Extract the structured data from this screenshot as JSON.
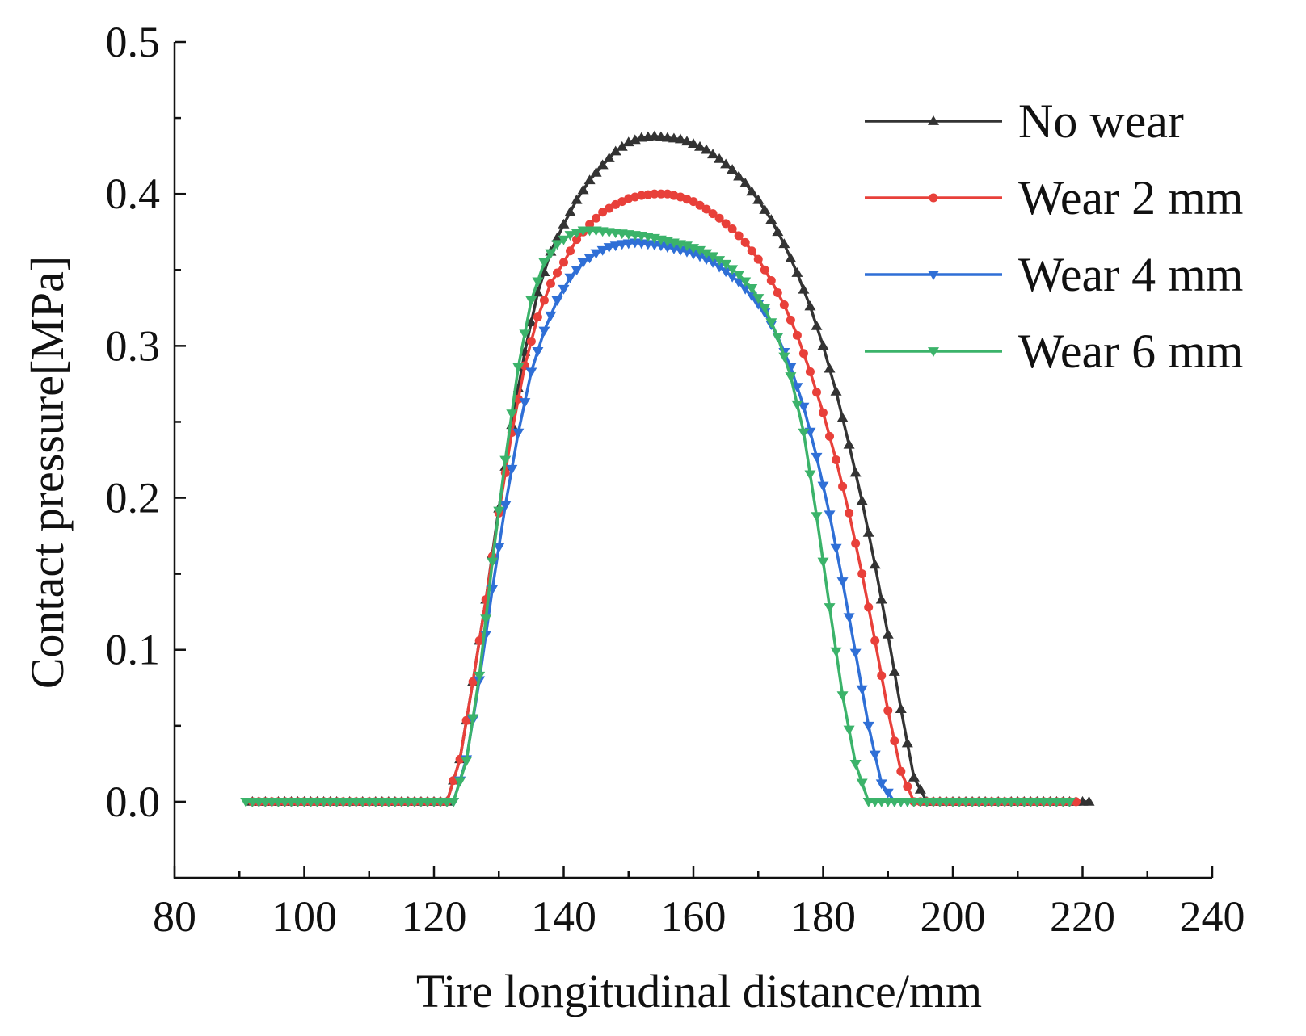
{
  "chart_data": {
    "type": "line",
    "title": "",
    "xlabel": "Tire longitudinal distance/mm",
    "ylabel": "Contact pressure[MPa]",
    "xlim": [
      80,
      240
    ],
    "ylim": [
      -0.05,
      0.5
    ],
    "x_ticks": [
      80,
      100,
      120,
      140,
      160,
      180,
      200,
      220,
      240
    ],
    "y_ticks": [
      0.0,
      0.1,
      0.2,
      0.3,
      0.4,
      0.5
    ],
    "x_tick_labels": [
      "80",
      "100",
      "120",
      "140",
      "160",
      "180",
      "200",
      "220",
      "240"
    ],
    "y_tick_labels": [
      "0.0",
      "0.1",
      "0.2",
      "0.3",
      "0.4",
      "0.5"
    ],
    "grid": false,
    "legend_position": "top-right",
    "series": [
      {
        "name": "No wear",
        "color": "#333333",
        "marker": "triangle-up",
        "x": [
          92,
          122,
          124,
          126,
          128,
          130,
          132,
          134,
          136,
          138,
          140,
          142,
          144,
          146,
          148,
          150,
          152,
          154,
          156,
          158,
          160,
          162,
          164,
          166,
          168,
          170,
          172,
          174,
          176,
          178,
          180,
          182,
          184,
          186,
          188,
          190,
          192,
          194,
          196,
          221
        ],
        "values": [
          0,
          0,
          0.028,
          0.079,
          0.133,
          0.193,
          0.248,
          0.296,
          0.335,
          0.362,
          0.38,
          0.396,
          0.409,
          0.419,
          0.428,
          0.434,
          0.437,
          0.438,
          0.437,
          0.436,
          0.433,
          0.429,
          0.423,
          0.416,
          0.407,
          0.396,
          0.383,
          0.367,
          0.348,
          0.326,
          0.3,
          0.27,
          0.235,
          0.198,
          0.156,
          0.11,
          0.061,
          0.016,
          0,
          0
        ]
      },
      {
        "name": "Wear 2 mm",
        "color": "#e8403a",
        "marker": "circle",
        "x": [
          92,
          122,
          124,
          126,
          128,
          130,
          132,
          134,
          136,
          138,
          140,
          142,
          144,
          146,
          148,
          150,
          152,
          154,
          156,
          158,
          160,
          162,
          164,
          166,
          168,
          170,
          172,
          174,
          176,
          178,
          180,
          182,
          184,
          186,
          188,
          190,
          192,
          194,
          196,
          219
        ],
        "values": [
          0,
          0,
          0.028,
          0.079,
          0.133,
          0.19,
          0.243,
          0.287,
          0.319,
          0.341,
          0.355,
          0.37,
          0.38,
          0.388,
          0.393,
          0.397,
          0.399,
          0.4,
          0.4,
          0.398,
          0.395,
          0.39,
          0.384,
          0.377,
          0.368,
          0.357,
          0.343,
          0.327,
          0.307,
          0.283,
          0.256,
          0.225,
          0.19,
          0.15,
          0.106,
          0.06,
          0.02,
          0,
          0,
          0
        ]
      },
      {
        "name": "Wear 4 mm",
        "color": "#2f6fd6",
        "marker": "triangle-down",
        "x": [
          92,
          123,
          125,
          127,
          129,
          131,
          133,
          135,
          137,
          139,
          141,
          143,
          145,
          147,
          149,
          151,
          153,
          155,
          157,
          159,
          161,
          163,
          165,
          167,
          169,
          171,
          173,
          175,
          177,
          179,
          181,
          183,
          185,
          187,
          189,
          191,
          193,
          218
        ],
        "values": [
          0,
          0,
          0.028,
          0.08,
          0.14,
          0.195,
          0.243,
          0.283,
          0.31,
          0.33,
          0.345,
          0.355,
          0.361,
          0.365,
          0.367,
          0.368,
          0.367,
          0.366,
          0.364,
          0.362,
          0.359,
          0.355,
          0.349,
          0.342,
          0.333,
          0.322,
          0.306,
          0.286,
          0.26,
          0.227,
          0.189,
          0.145,
          0.098,
          0.05,
          0.012,
          0,
          0,
          0
        ]
      },
      {
        "name": "Wear 6 mm",
        "color": "#3bb36a",
        "marker": "triangle-down",
        "x": [
          91,
          123,
          125,
          127,
          129,
          131,
          133,
          135,
          137,
          139,
          141,
          143,
          145,
          147,
          149,
          151,
          153,
          155,
          157,
          159,
          161,
          163,
          165,
          167,
          169,
          171,
          173,
          175,
          177,
          179,
          181,
          183,
          185,
          187,
          189,
          191,
          193,
          218
        ],
        "values": [
          0,
          0,
          0.027,
          0.083,
          0.158,
          0.225,
          0.286,
          0.33,
          0.355,
          0.367,
          0.373,
          0.376,
          0.376,
          0.375,
          0.374,
          0.373,
          0.372,
          0.37,
          0.368,
          0.366,
          0.363,
          0.359,
          0.354,
          0.347,
          0.338,
          0.325,
          0.306,
          0.28,
          0.243,
          0.188,
          0.128,
          0.07,
          0.025,
          0,
          0,
          0,
          0,
          0
        ]
      }
    ]
  }
}
